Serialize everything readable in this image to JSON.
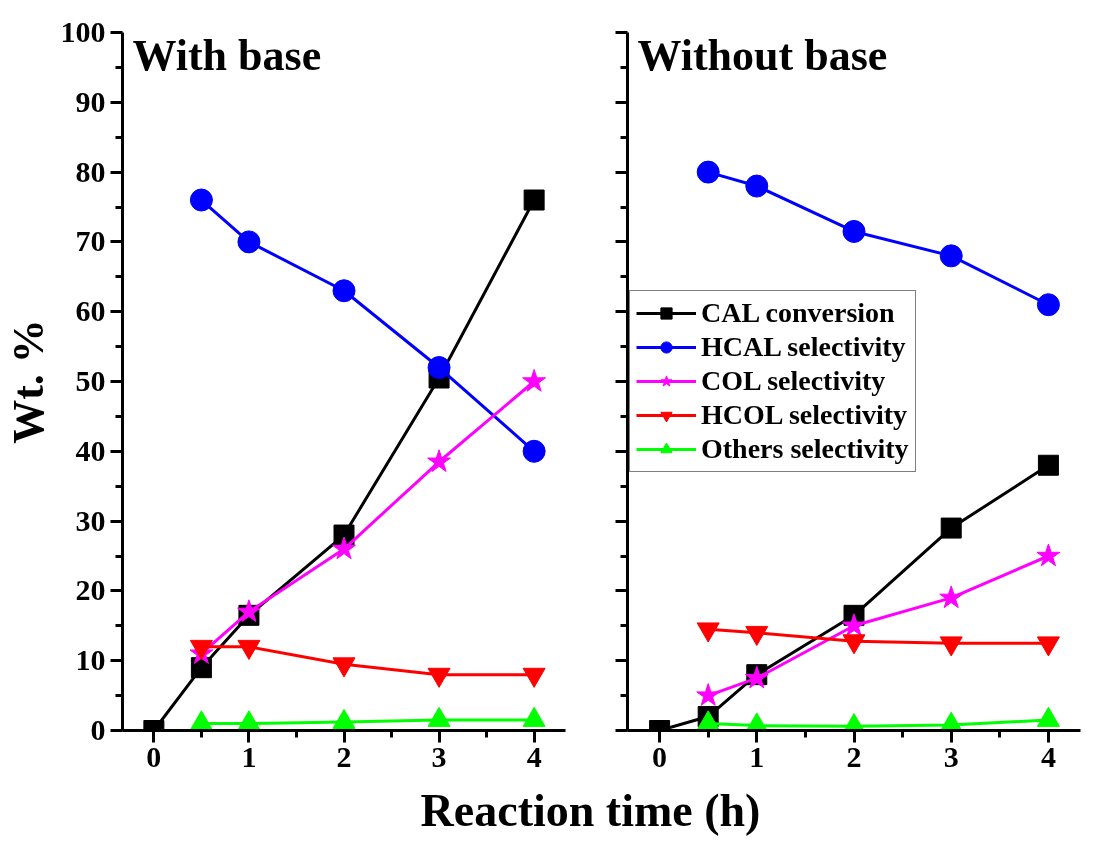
{
  "chart_data": [
    {
      "type": "line",
      "title": "With base",
      "xlabel": "Reaction time (h)",
      "ylabel": "Wt. %",
      "xlim": [
        -0.33,
        4.33
      ],
      "xticks": [
        0,
        1,
        2,
        3,
        4
      ],
      "ylim": [
        0,
        100
      ],
      "yticks": [
        0,
        10,
        20,
        30,
        40,
        50,
        60,
        70,
        80,
        90,
        100
      ],
      "grid": false,
      "series": [
        {
          "color": "#000000",
          "marker": "square",
          "x": [
            0,
            0.5,
            1,
            2,
            3,
            4
          ],
          "values": [
            0,
            9,
            16.5,
            28,
            50.5,
            76
          ]
        },
        {
          "color": "#0000ff",
          "marker": "circle",
          "x": [
            0.5,
            1,
            2,
            3,
            4
          ],
          "values": [
            76,
            70,
            63,
            52,
            40
          ]
        },
        {
          "color": "#ff00ff",
          "marker": "star",
          "x": [
            0.5,
            1,
            2,
            3,
            4
          ],
          "values": [
            11,
            17,
            26,
            38.5,
            50
          ]
        },
        {
          "color": "#ff0000",
          "marker": "triangle_down",
          "x": [
            0.5,
            1,
            2,
            3,
            4
          ],
          "values": [
            12,
            12,
            9.5,
            8,
            8
          ]
        },
        {
          "color": "#00ff00",
          "marker": "triangle",
          "x": [
            0.5,
            1,
            2,
            3,
            4
          ],
          "values": [
            1,
            1,
            1.2,
            1.5,
            1.5
          ]
        }
      ]
    },
    {
      "type": "line",
      "title": "Without base",
      "xlim": [
        -0.33,
        4.33
      ],
      "xticks": [
        0,
        1,
        2,
        3,
        4
      ],
      "ylim": [
        0,
        100
      ],
      "yticks": [
        0,
        10,
        20,
        30,
        40,
        50,
        60,
        70,
        80,
        90,
        100
      ],
      "tick_labels": "x",
      "grid": false,
      "legend": "left",
      "series": [
        {
          "name": "CAL conversion",
          "color": "#000000",
          "marker": "square",
          "x": [
            0,
            0.5,
            1,
            2,
            3,
            4
          ],
          "values": [
            0,
            2,
            8,
            16.5,
            29,
            38
          ]
        },
        {
          "name": "HCAL selectivity",
          "color": "#0000ff",
          "marker": "circle",
          "x": [
            0.5,
            1,
            2,
            3,
            4
          ],
          "values": [
            80,
            78,
            71.5,
            68,
            61
          ]
        },
        {
          "name": "COL selectivity",
          "color": "#ff00ff",
          "marker": "star",
          "x": [
            0.5,
            1,
            2,
            3,
            4
          ],
          "values": [
            5,
            7.5,
            15,
            19,
            25
          ]
        },
        {
          "name": "HCOL selectivity",
          "color": "#ff0000",
          "marker": "triangle_down",
          "x": [
            0.5,
            1,
            2,
            3,
            4
          ],
          "values": [
            14.5,
            14,
            12.8,
            12.5,
            12.5
          ]
        },
        {
          "name": "Others selectivity",
          "color": "#00ff00",
          "marker": "triangle",
          "x": [
            0.5,
            1,
            2,
            3,
            4
          ],
          "values": [
            1,
            0.7,
            0.6,
            0.8,
            1.5
          ]
        }
      ]
    }
  ]
}
